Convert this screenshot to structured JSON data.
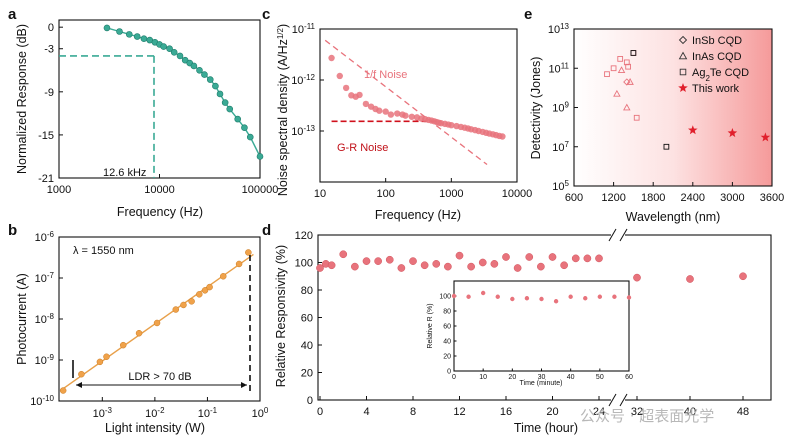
{
  "figure": {
    "watermark": "公众号 · 超表面光学"
  },
  "chart_data": [
    {
      "panel": "a",
      "type": "line",
      "xlabel": "Frequency (Hz)",
      "ylabel": "Normalized Response (dB)",
      "x_scale": "log",
      "xlim": [
        1000,
        100000
      ],
      "ylim": [
        -21,
        1
      ],
      "x_ticks": [
        "1000",
        "10000",
        "100000"
      ],
      "y_ticks": [
        "0",
        "-3",
        "-9",
        "-15",
        "-21"
      ],
      "annotation": "12.6 kHz",
      "cutoff": {
        "x": 12600,
        "y": -3
      },
      "color": "#3aaa95",
      "x": [
        3000,
        4000,
        5000,
        6000,
        7000,
        8000,
        9000,
        10000,
        11000,
        12600,
        14000,
        16000,
        18000,
        20000,
        22000,
        25000,
        28000,
        32000,
        36000,
        40000,
        45000,
        50000,
        60000,
        70000,
        80000,
        100000
      ],
      "y": [
        -0.1,
        -0.6,
        -1.0,
        -1.3,
        -1.6,
        -1.8,
        -2.1,
        -2.4,
        -2.7,
        -3.0,
        -3.5,
        -4.0,
        -4.6,
        -5.0,
        -5.4,
        -6.0,
        -6.6,
        -7.3,
        -8.2,
        -9.3,
        -10.5,
        -11.4,
        -12.8,
        -14.0,
        -15.3,
        -18.0
      ]
    },
    {
      "panel": "b",
      "type": "scatter",
      "xlabel": "Light intensity (W)",
      "ylabel": "Photocurrent (A)",
      "x_scale": "log",
      "y_scale": "log",
      "xlim": [
        0.00015,
        1
      ],
      "ylim": [
        1e-10,
        1e-06
      ],
      "x_ticks": [
        "10-3",
        "10-2",
        "10-1",
        "100"
      ],
      "y_ticks": [
        "10-10",
        "10-9",
        "10-8",
        "10-7",
        "10-6"
      ],
      "annotation_wavelength": "λ = 1550 nm",
      "annotation_ldr": "LDR > 70 dB",
      "color": "#f0a24a",
      "x": [
        0.00018,
        0.0004,
        0.0009,
        0.0012,
        0.0025,
        0.005,
        0.011,
        0.025,
        0.035,
        0.05,
        0.07,
        0.09,
        0.11,
        0.2,
        0.4,
        0.6
      ],
      "y": [
        1.8e-10,
        4.5e-10,
        9e-10,
        1.2e-09,
        2.3e-09,
        4.5e-09,
        8e-09,
        1.7e-08,
        2.2e-08,
        2.7e-08,
        4e-08,
        5e-08,
        6e-08,
        1.1e-07,
        2.2e-07,
        4.2e-07
      ]
    },
    {
      "panel": "c",
      "type": "scatter",
      "xlabel": "Frequency (Hz)",
      "ylabel": "Noise spectral density (A/Hz1/2)",
      "x_scale": "log",
      "y_scale": "log",
      "xlim": [
        10,
        10000
      ],
      "ylim": [
        1e-14,
        1e-11
      ],
      "x_ticks": [
        "10",
        "100",
        "1000",
        "10000"
      ],
      "y_ticks": [
        "10-11",
        "10-12",
        "10-13"
      ],
      "legend": [
        "1/f Noise",
        "G-R Noise"
      ],
      "color": "#e8737c",
      "x": [
        15,
        20,
        25,
        30,
        35,
        40,
        50,
        60,
        70,
        80,
        100,
        120,
        150,
        180,
        200,
        250,
        300,
        350,
        400,
        450,
        500,
        550,
        600,
        650,
        700,
        800,
        900,
        1000,
        1200,
        1400,
        1600,
        1800,
        2000,
        2300,
        2600,
        3000,
        3400,
        3800,
        4300,
        4800,
        5400,
        6000
      ],
      "y": [
        2.7e-12,
        1.2e-12,
        7e-13,
        5e-13,
        4.7e-13,
        5.1e-13,
        3.4e-13,
        3e-13,
        2.7e-13,
        2.5e-13,
        2.4e-13,
        2.1e-13,
        2.2e-13,
        2.1e-13,
        2e-13,
        1.9e-13,
        1.85e-13,
        1.75e-13,
        1.7e-13,
        1.65e-13,
        1.6e-13,
        1.55e-13,
        1.5e-13,
        1.45e-13,
        1.42e-13,
        1.38e-13,
        1.34e-13,
        1.3e-13,
        1.25e-13,
        1.2e-13,
        1.16e-13,
        1.12e-13,
        1.08e-13,
        1.04e-13,
        1e-13,
        9.6e-14,
        9.2e-14,
        8.9e-14,
        8.6e-14,
        8.3e-14,
        8e-14,
        7.8e-14
      ]
    },
    {
      "panel": "d",
      "type": "scatter",
      "xlabel": "Time (hour)",
      "ylabel": "Relative Responsivity (%)",
      "ylim": [
        0,
        120
      ],
      "x_ticks": [
        "0",
        "4",
        "8",
        "12",
        "16",
        "20",
        "24",
        "32",
        "40",
        "48"
      ],
      "y_ticks": [
        "0",
        "20",
        "40",
        "60",
        "80",
        "100",
        "120"
      ],
      "color": "#e8737c",
      "x": [
        0,
        0.5,
        1,
        2,
        3,
        4,
        5,
        6,
        7,
        8,
        9,
        10,
        11,
        12,
        13,
        14,
        15,
        16,
        17,
        18,
        19,
        20,
        21,
        22,
        23,
        24,
        32,
        40,
        48
      ],
      "y": [
        96,
        99,
        98,
        106,
        97,
        101,
        101,
        102,
        96,
        101,
        98,
        99,
        97,
        105,
        97,
        100,
        99,
        104,
        96,
        104,
        97,
        104,
        98,
        103,
        103,
        103,
        89,
        88,
        90
      ],
      "inset": {
        "xlabel": "Time (minute)",
        "ylabel": "Relative R (%)",
        "xlim": [
          0,
          60
        ],
        "ylim": [
          0,
          120
        ],
        "x_ticks": [
          "0",
          "10",
          "20",
          "30",
          "40",
          "50",
          "60"
        ],
        "y_ticks": [
          "0",
          "20",
          "40",
          "60",
          "80",
          "100"
        ],
        "x": [
          0,
          5,
          10,
          15,
          20,
          25,
          30,
          35,
          40,
          45,
          50,
          55,
          60
        ],
        "y": [
          100,
          99,
          104,
          99,
          96,
          97,
          96,
          93,
          99,
          97,
          99,
          99,
          98
        ]
      }
    },
    {
      "panel": "e",
      "type": "scatter",
      "xlabel": "Wavelength (nm)",
      "ylabel": "Detectivity (Jones)",
      "y_scale": "log",
      "xlim": [
        600,
        3600
      ],
      "ylim": [
        100000,
        10000000000000.0
      ],
      "x_ticks": [
        "600",
        "1200",
        "1800",
        "2400",
        "3000",
        "3600"
      ],
      "y_ticks": [
        "105",
        "107",
        "109",
        "1011",
        "1013"
      ],
      "series": [
        {
          "name": "InSb CQD",
          "marker": "diamond",
          "color": "#e8737c",
          "x": [
            1400
          ],
          "y": [
            20000000000
          ]
        },
        {
          "name": "InAs CQD",
          "marker": "triangle",
          "color": "#e8737c",
          "x": [
            1250,
            1320,
            1400,
            1450
          ],
          "y": [
            5000000000,
            80000000000,
            1000000000,
            20000000000
          ]
        },
        {
          "name": "Ag2Te CQD",
          "marker": "square",
          "color": "#e8737c",
          "x": [
            1100,
            1200,
            1300,
            1400,
            1420,
            1500,
            1550
          ],
          "y": [
            50000000000,
            100000000000,
            300000000000,
            200000000000,
            120000000000,
            600000000000,
            300000000
          ]
        },
        {
          "name": "",
          "marker": "square",
          "color": "#111111",
          "x": [
            1500,
            2000
          ],
          "y": [
            600000000000,
            10000000
          ]
        },
        {
          "name": "This work",
          "marker": "star",
          "color": "#e0202c",
          "x": [
            2400,
            3000,
            3500
          ],
          "y": [
            70000000,
            50000000,
            30000000
          ]
        }
      ]
    }
  ]
}
